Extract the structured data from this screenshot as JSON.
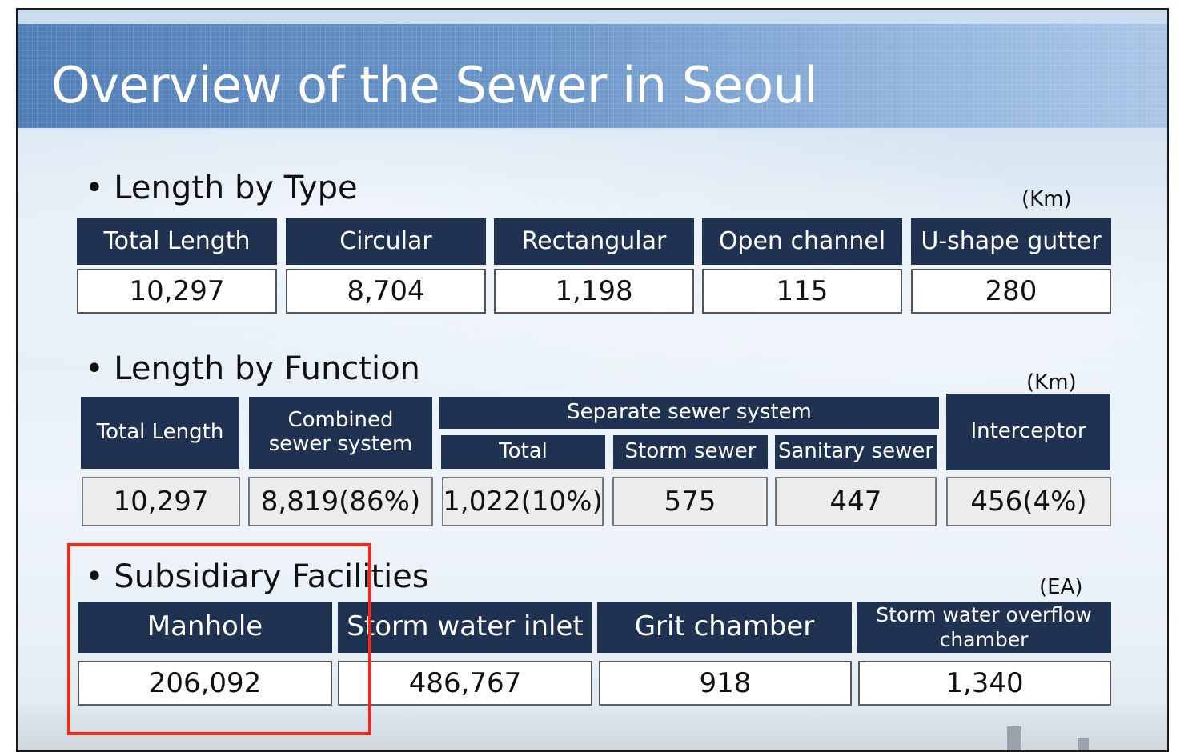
{
  "title": "Overview of the Sewer in Seoul",
  "length_by_type": {
    "heading": "• Length by Type",
    "unit": "(Km)",
    "headers": [
      "Total Length",
      "Circular",
      "Rectangular",
      "Open channel",
      "U-shape gutter"
    ],
    "values": [
      "10,297",
      "8,704",
      "1,198",
      "115",
      "280"
    ]
  },
  "length_by_function": {
    "heading": "• Length by Function",
    "unit": "(Km)",
    "total_length_header": "Total Length",
    "combined_header": "Combined\nsewer system",
    "separate_header": "Separate sewer system",
    "separate_sub": [
      "Total",
      "Storm sewer",
      "Sanitary sewer"
    ],
    "interceptor_header": "Interceptor",
    "values": [
      "10,297",
      "8,819(86%)",
      "1,022(10%)",
      "575",
      "447",
      "456(4%)"
    ]
  },
  "subsidiary_facilities": {
    "heading": "• Subsidiary Facilities",
    "unit": "(EA)",
    "headers": [
      "Manhole",
      "Storm water inlet",
      "Grit chamber",
      "Storm water overflow\nchamber"
    ],
    "values": [
      "206,092",
      "486,767",
      "918",
      "1,340"
    ]
  },
  "highlight_color": "#ee2a1a",
  "header_color": "#1f3252"
}
